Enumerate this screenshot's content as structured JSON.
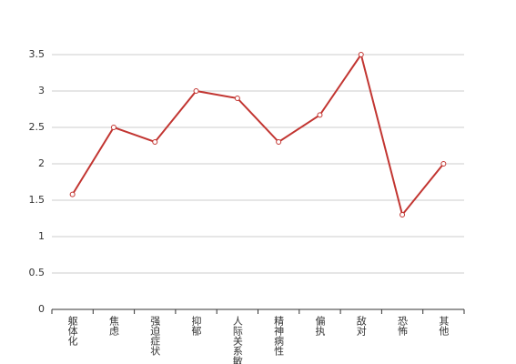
{
  "chart_data": {
    "type": "line",
    "categories": [
      "躯体化",
      "焦虑",
      "强迫症状",
      "抑郁",
      "人际关系敏感",
      "精神病性",
      "偏执",
      "敌对",
      "恐怖",
      "其他"
    ],
    "values": [
      1.58,
      2.5,
      2.3,
      3.0,
      2.9,
      2.3,
      2.67,
      3.5,
      1.3,
      2.0
    ],
    "color": "#c23531",
    "ylim": [
      0,
      3.5
    ],
    "yticks": [
      0,
      0.5,
      1,
      1.5,
      2,
      2.5,
      3,
      3.5
    ],
    "grid": true
  }
}
